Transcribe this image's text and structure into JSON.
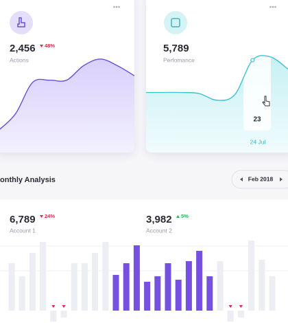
{
  "cards": [
    {
      "value": "2,456",
      "change": "48%",
      "label": "Actions",
      "trend": {
        "type": "line",
        "color": "#6a4fd6",
        "ylim": [
          0,
          100
        ],
        "values": [
          20,
          35,
          63,
          65,
          65,
          78,
          84,
          78,
          69
        ]
      }
    },
    {
      "value": "5,789",
      "label": "Perfomance",
      "tooltip_value": "23",
      "tooltip_date": "24 Jul",
      "trend": {
        "type": "line",
        "color": "#3cc4cf",
        "ylim": [
          0,
          100
        ],
        "values": [
          54,
          54,
          54,
          53,
          47,
          52,
          83,
          86,
          75
        ]
      }
    }
  ],
  "section_title": "onthly Analysis",
  "period": "Feb 2018",
  "accounts": [
    {
      "value": "6,789",
      "change": "24%",
      "label": "Account 1"
    },
    {
      "value": "3,982",
      "change": "5%",
      "label": "Account 2"
    }
  ],
  "chart_data": {
    "type": "bar",
    "ylim": [
      -18,
      110
    ],
    "values": [
      69,
      50,
      84,
      100,
      -16,
      -10,
      69,
      69,
      84,
      100,
      52,
      69,
      95,
      42,
      50,
      69,
      45,
      72,
      87,
      50,
      72,
      -16,
      -10,
      102,
      74,
      50
    ],
    "colors": [
      "#ededf4",
      "#ededf4",
      "#ededf4",
      "#ededf4",
      "#ededf4",
      "#ededf4",
      "#ededf4",
      "#ededf4",
      "#ededf4",
      "#ededf4",
      "#7650e0",
      "#7650e0",
      "#7650e0",
      "#7650e0",
      "#7650e0",
      "#7650e0",
      "#7650e0",
      "#7650e0",
      "#7650e0",
      "#7650e0",
      "#ededf4",
      "#ededf4",
      "#ededf4",
      "#ededf4",
      "#ededf4",
      "#ededf4"
    ],
    "negative_color": "#e0244a"
  }
}
